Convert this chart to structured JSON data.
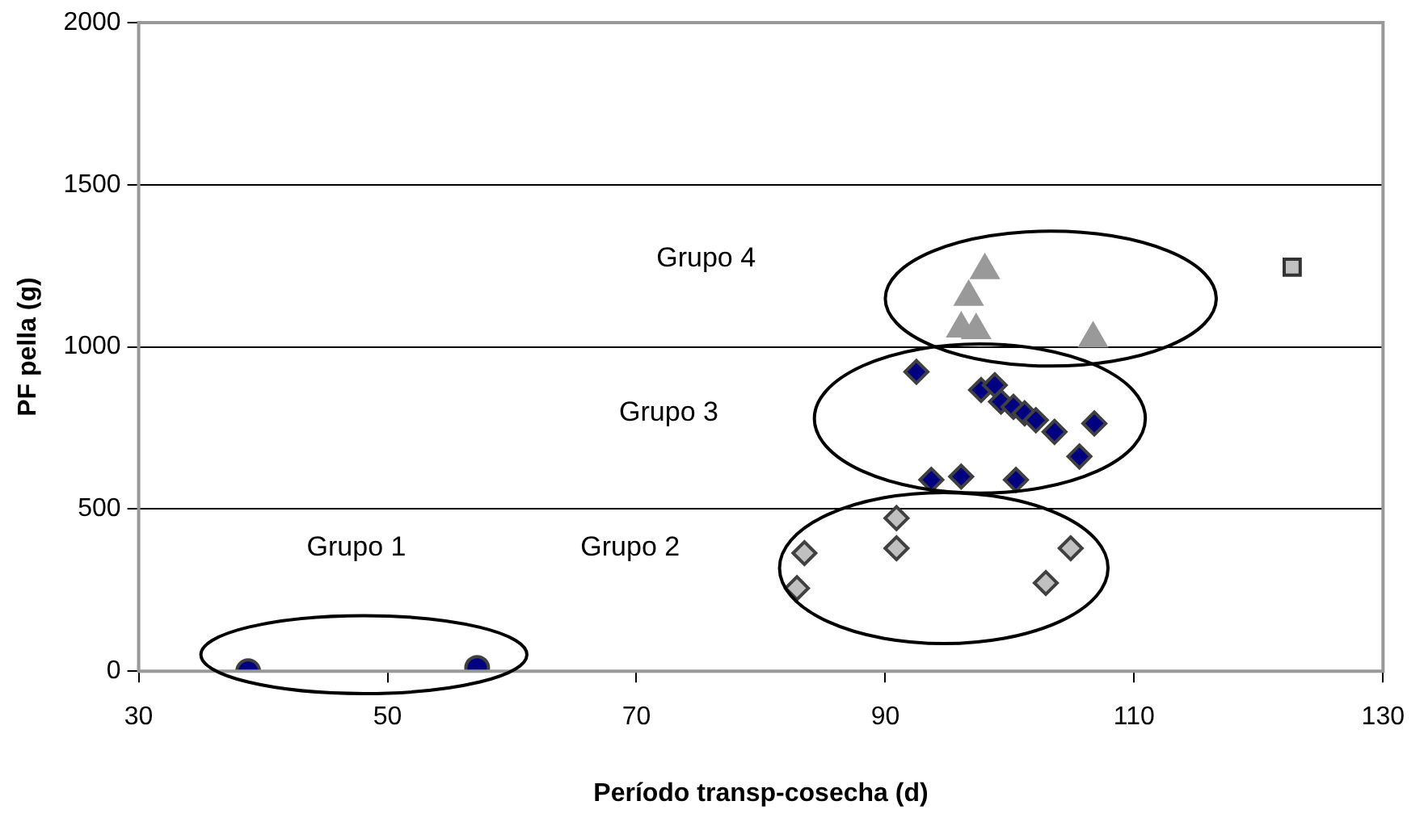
{
  "chart_data": {
    "type": "scatter",
    "xlabel": "Período transp-cosecha (d)",
    "ylabel": "PF pella (g)",
    "xlim": [
      30,
      130
    ],
    "xticks": [
      30,
      50,
      70,
      90,
      110,
      130
    ],
    "ylim": [
      0,
      2000
    ],
    "yticks": [
      0,
      500,
      1000,
      1500,
      2000
    ],
    "grid": "y",
    "series": [
      {
        "color": "#000080",
        "marker": "circle",
        "x": [
          38.8,
          57.2
        ],
        "values": [
          0,
          10
        ]
      },
      {
        "color": "#c0c0c0",
        "marker": "diamond",
        "x": [
          83.5,
          82.9,
          90.9,
          90.9,
          104.9,
          102.9
        ],
        "values": [
          364,
          256,
          472,
          379,
          379,
          272
        ]
      },
      {
        "color": "#000080",
        "marker": "diamond",
        "x": [
          92.5,
          97.7,
          98.8,
          99.3,
          100.3,
          101.2,
          102.1,
          103.6,
          106.8,
          105.6,
          93.7,
          96.1,
          100.5
        ],
        "values": [
          923,
          867,
          882,
          831,
          815,
          795,
          774,
          738,
          764,
          662,
          590,
          600,
          590
        ]
      },
      {
        "color": "#999999",
        "marker": "triangle",
        "x": [
          98.0,
          96.7,
          96.1,
          97.3,
          106.7
        ],
        "values": [
          1236,
          1154,
          1056,
          1051,
          1026
        ]
      },
      {
        "color": "#c0c0c0",
        "marker": "square",
        "x": [
          122.7
        ],
        "values": [
          1246
        ]
      }
    ],
    "annotations": [
      "Grupo 1",
      "Grupo 2",
      "Grupo 3",
      "Grupo 4"
    ]
  }
}
